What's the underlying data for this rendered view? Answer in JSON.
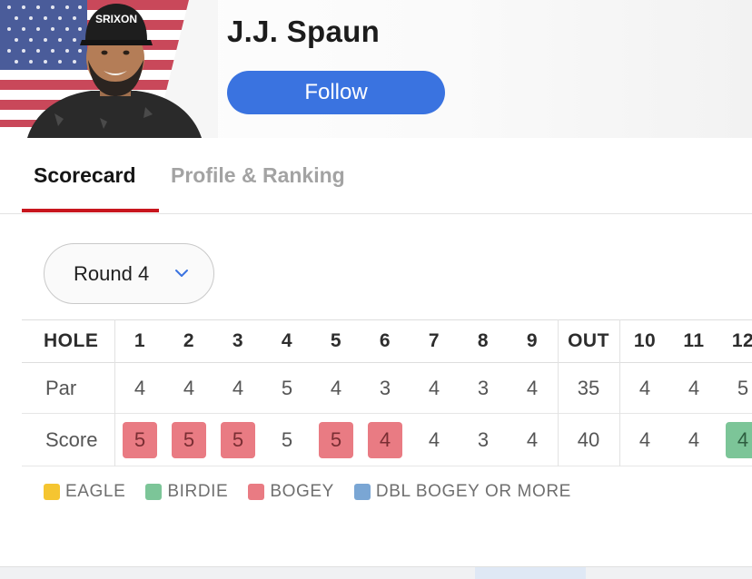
{
  "player": {
    "name": "J.J. Spaun",
    "follow_label": "Follow",
    "cap_text": "SRIXON"
  },
  "tabs": [
    {
      "label": "Scorecard",
      "active": true
    },
    {
      "label": "Profile & Ranking",
      "active": false
    }
  ],
  "round_select": {
    "label": "Round 4"
  },
  "scorecard": {
    "header_label": "HOLE",
    "par_label": "Par",
    "score_label": "Score",
    "columns": [
      "1",
      "2",
      "3",
      "4",
      "5",
      "6",
      "7",
      "8",
      "9",
      "OUT",
      "10",
      "11",
      "12"
    ],
    "par": [
      "4",
      "4",
      "4",
      "5",
      "4",
      "3",
      "4",
      "3",
      "4",
      "35",
      "4",
      "4",
      "5"
    ],
    "score": [
      "5",
      "5",
      "5",
      "5",
      "5",
      "4",
      "4",
      "3",
      "4",
      "40",
      "4",
      "4",
      "4"
    ],
    "score_status": [
      "bogey",
      "bogey",
      "bogey",
      "",
      "bogey",
      "bogey",
      "",
      "",
      "",
      "",
      "",
      "",
      "birdie"
    ]
  },
  "legend": [
    {
      "label": "EAGLE",
      "color": "#f5c531"
    },
    {
      "label": "BIRDIE",
      "color": "#7cc598"
    },
    {
      "label": "BOGEY",
      "color": "#e97b83"
    },
    {
      "label": "DBL BOGEY OR MORE",
      "color": "#7aa6d4"
    }
  ],
  "colors": {
    "accent_blue": "#3a73e0",
    "tab_active_underline": "#c8161e"
  }
}
